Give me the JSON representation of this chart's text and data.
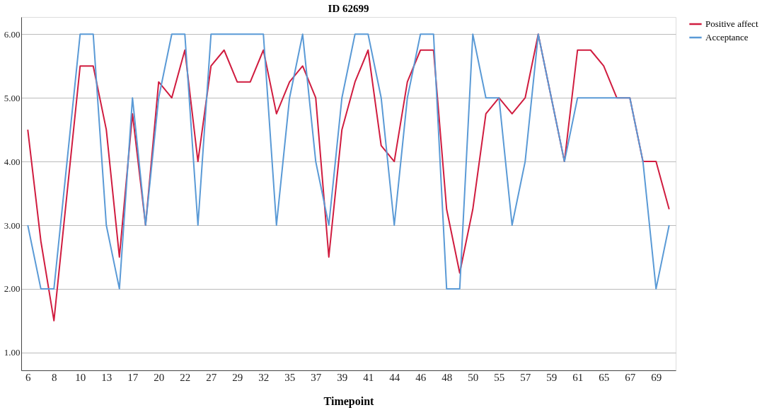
{
  "chart_data": {
    "type": "line",
    "title": "ID 62699",
    "xlabel": "Timepoint",
    "categories": [
      "6",
      null,
      "8",
      null,
      "10",
      null,
      "13",
      null,
      "17",
      null,
      "20",
      null,
      "22",
      null,
      "27",
      null,
      "29",
      null,
      "32",
      null,
      "35",
      null,
      "37",
      null,
      "39",
      null,
      "41",
      null,
      "44",
      null,
      "46",
      null,
      "48",
      null,
      "50",
      null,
      "55",
      null,
      "57",
      null,
      "59",
      null,
      "61",
      null,
      "65",
      null,
      "67",
      null,
      "69",
      null
    ],
    "series": [
      {
        "name": "Positive affect",
        "color": "#d01c3f",
        "values": [
          4.5,
          2.75,
          1.5,
          3.5,
          5.5,
          5.5,
          4.5,
          2.5,
          4.75,
          3.0,
          5.25,
          5.0,
          5.75,
          4.0,
          5.5,
          5.75,
          5.25,
          5.25,
          5.75,
          4.75,
          5.25,
          5.5,
          5.0,
          2.5,
          4.5,
          5.25,
          5.75,
          4.25,
          4.0,
          5.25,
          5.75,
          5.75,
          3.25,
          2.25,
          3.25,
          4.75,
          5.0,
          4.75,
          5.0,
          6.0,
          5.0,
          4.0,
          5.75,
          5.75,
          5.5,
          5.0,
          5.0,
          4.0,
          4.0,
          3.25
        ]
      },
      {
        "name": "Acceptance",
        "color": "#5a9ad6",
        "values": [
          3.0,
          2.0,
          2.0,
          4.0,
          6.0,
          6.0,
          3.0,
          2.0,
          5.0,
          3.0,
          5.0,
          6.0,
          6.0,
          3.0,
          6.0,
          6.0,
          6.0,
          6.0,
          6.0,
          3.0,
          5.0,
          6.0,
          4.0,
          3.0,
          5.0,
          6.0,
          6.0,
          5.0,
          3.0,
          5.0,
          6.0,
          6.0,
          2.0,
          2.0,
          6.0,
          5.0,
          5.0,
          3.0,
          4.0,
          6.0,
          5.0,
          4.0,
          5.0,
          5.0,
          5.0,
          5.0,
          5.0,
          4.0,
          2.0,
          3.0
        ]
      }
    ],
    "ylim": [
      0.72,
      6.27
    ],
    "yticks": [
      {
        "value": 1,
        "label": "1.00"
      },
      {
        "value": 2,
        "label": "2.00"
      },
      {
        "value": 3,
        "label": "3.00"
      },
      {
        "value": 4,
        "label": "4.00"
      },
      {
        "value": 5,
        "label": "5.00"
      },
      {
        "value": 6,
        "label": "6.00"
      }
    ],
    "grid": "y",
    "legend": "top right",
    "marker": "none",
    "line_style": "solid"
  }
}
